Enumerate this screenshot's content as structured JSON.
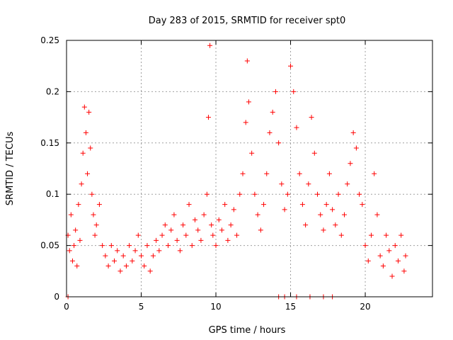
{
  "chart_data": {
    "type": "scatter",
    "title": "Day 283 of 2015, SRMTID for receiver spt0",
    "xlabel": "GPS time / hours",
    "ylabel": "SRMTID / TECUs",
    "xlim": [
      0,
      24.5
    ],
    "ylim": [
      0,
      0.25
    ],
    "xticks": [
      0,
      5,
      10,
      15,
      20
    ],
    "xtick_labels": [
      "0",
      "5",
      "10",
      "15",
      "20"
    ],
    "yticks": [
      0,
      0.05,
      0.1,
      0.15,
      0.2,
      0.25
    ],
    "ytick_labels": [
      "0",
      "0.05",
      "0.1",
      "0.15",
      "0.2",
      "0.25"
    ],
    "grid": true,
    "marker": "+",
    "color": "#ff0000",
    "series": [
      {
        "name": "SRMTID",
        "points": [
          [
            0.1,
            0.06
          ],
          [
            0.2,
            0.045
          ],
          [
            0.3,
            0.08
          ],
          [
            0.4,
            0.035
          ],
          [
            0.5,
            0.05
          ],
          [
            0.6,
            0.065
          ],
          [
            0.7,
            0.03
          ],
          [
            0.8,
            0.09
          ],
          [
            0.9,
            0.055
          ],
          [
            1.0,
            0.11
          ],
          [
            1.1,
            0.14
          ],
          [
            1.2,
            0.185
          ],
          [
            1.3,
            0.16
          ],
          [
            1.4,
            0.12
          ],
          [
            1.5,
            0.18
          ],
          [
            1.6,
            0.145
          ],
          [
            1.7,
            0.1
          ],
          [
            1.8,
            0.08
          ],
          [
            1.9,
            0.06
          ],
          [
            2.0,
            0.07
          ],
          [
            2.2,
            0.09
          ],
          [
            2.4,
            0.05
          ],
          [
            2.6,
            0.04
          ],
          [
            2.8,
            0.03
          ],
          [
            3.0,
            0.05
          ],
          [
            3.2,
            0.035
          ],
          [
            3.4,
            0.045
          ],
          [
            3.6,
            0.025
          ],
          [
            3.8,
            0.04
          ],
          [
            4.0,
            0.03
          ],
          [
            4.2,
            0.05
          ],
          [
            4.4,
            0.035
          ],
          [
            4.6,
            0.045
          ],
          [
            4.8,
            0.06
          ],
          [
            5.0,
            0.04
          ],
          [
            5.2,
            0.03
          ],
          [
            5.4,
            0.05
          ],
          [
            5.6,
            0.025
          ],
          [
            5.8,
            0.04
          ],
          [
            6.0,
            0.055
          ],
          [
            6.2,
            0.045
          ],
          [
            6.4,
            0.06
          ],
          [
            6.6,
            0.07
          ],
          [
            6.8,
            0.05
          ],
          [
            7.0,
            0.065
          ],
          [
            7.2,
            0.08
          ],
          [
            7.4,
            0.055
          ],
          [
            7.6,
            0.045
          ],
          [
            7.8,
            0.07
          ],
          [
            8.0,
            0.06
          ],
          [
            8.2,
            0.09
          ],
          [
            8.4,
            0.05
          ],
          [
            8.6,
            0.075
          ],
          [
            8.8,
            0.065
          ],
          [
            9.0,
            0.055
          ],
          [
            9.2,
            0.08
          ],
          [
            9.4,
            0.1
          ],
          [
            9.5,
            0.175
          ],
          [
            9.6,
            0.245
          ],
          [
            9.7,
            0.07
          ],
          [
            9.8,
            0.06
          ],
          [
            10.0,
            0.05
          ],
          [
            10.2,
            0.075
          ],
          [
            10.4,
            0.065
          ],
          [
            10.6,
            0.09
          ],
          [
            10.8,
            0.055
          ],
          [
            11.0,
            0.07
          ],
          [
            11.2,
            0.085
          ],
          [
            11.4,
            0.06
          ],
          [
            11.6,
            0.1
          ],
          [
            11.8,
            0.12
          ],
          [
            12.0,
            0.17
          ],
          [
            12.1,
            0.23
          ],
          [
            12.2,
            0.19
          ],
          [
            12.4,
            0.14
          ],
          [
            12.6,
            0.1
          ],
          [
            12.8,
            0.08
          ],
          [
            13.0,
            0.065
          ],
          [
            13.2,
            0.09
          ],
          [
            13.4,
            0.12
          ],
          [
            13.6,
            0.16
          ],
          [
            13.8,
            0.18
          ],
          [
            14.0,
            0.2
          ],
          [
            14.2,
            0.15
          ],
          [
            14.4,
            0.11
          ],
          [
            14.6,
            0.085
          ],
          [
            14.8,
            0.1
          ],
          [
            15.0,
            0.225
          ],
          [
            15.2,
            0.2
          ],
          [
            15.4,
            0.165
          ],
          [
            15.6,
            0.12
          ],
          [
            15.8,
            0.09
          ],
          [
            16.0,
            0.07
          ],
          [
            16.2,
            0.11
          ],
          [
            16.4,
            0.175
          ],
          [
            16.6,
            0.14
          ],
          [
            16.8,
            0.1
          ],
          [
            17.0,
            0.08
          ],
          [
            17.2,
            0.065
          ],
          [
            17.4,
            0.09
          ],
          [
            17.6,
            0.12
          ],
          [
            17.8,
            0.085
          ],
          [
            18.0,
            0.07
          ],
          [
            18.2,
            0.1
          ],
          [
            18.4,
            0.06
          ],
          [
            18.6,
            0.08
          ],
          [
            18.8,
            0.11
          ],
          [
            19.0,
            0.13
          ],
          [
            19.2,
            0.16
          ],
          [
            19.4,
            0.145
          ],
          [
            19.6,
            0.1
          ],
          [
            19.8,
            0.09
          ],
          [
            20.0,
            0.05
          ],
          [
            20.2,
            0.035
          ],
          [
            20.4,
            0.06
          ],
          [
            20.6,
            0.12
          ],
          [
            20.8,
            0.08
          ],
          [
            21.0,
            0.04
          ],
          [
            21.2,
            0.03
          ],
          [
            21.4,
            0.06
          ],
          [
            21.6,
            0.045
          ],
          [
            21.8,
            0.02
          ],
          [
            22.0,
            0.05
          ],
          [
            22.2,
            0.035
          ],
          [
            22.4,
            0.06
          ],
          [
            22.6,
            0.025
          ],
          [
            22.7,
            0.04
          ],
          [
            14.2,
            0.0
          ],
          [
            14.6,
            0.0
          ],
          [
            15.4,
            0.0
          ],
          [
            16.3,
            0.0
          ],
          [
            17.2,
            0.0
          ],
          [
            17.8,
            0.0
          ],
          [
            0.1,
            0.0
          ]
        ]
      }
    ]
  }
}
